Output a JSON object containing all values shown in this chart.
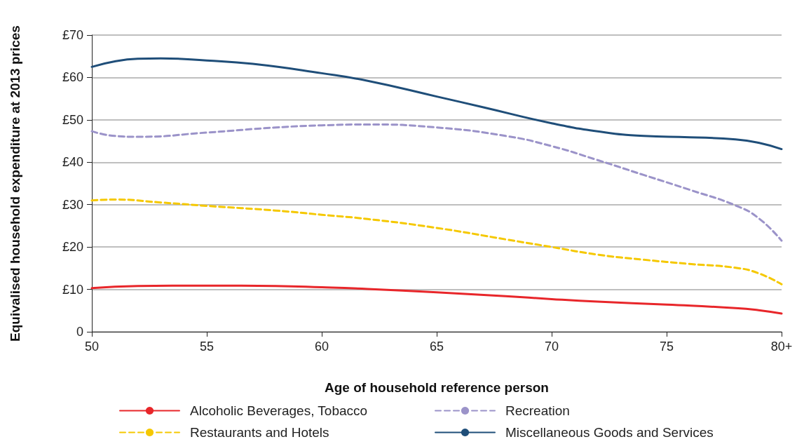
{
  "chart_data": {
    "type": "line",
    "xlabel": "Age of household reference person",
    "ylabel": "Equivalised household expenditure at 2013 prices",
    "xlim": [
      50,
      80
    ],
    "xticks": [
      50,
      55,
      60,
      65,
      70,
      75,
      {
        "value": 80,
        "label": "80+"
      }
    ],
    "ylim": [
      0,
      70
    ],
    "yticks": [
      0,
      {
        "value": 10,
        "label": "£10"
      },
      {
        "value": 20,
        "label": "£20"
      },
      {
        "value": 30,
        "label": "£30"
      },
      {
        "value": 40,
        "label": "£40"
      },
      {
        "value": 50,
        "label": "£50"
      },
      {
        "value": 60,
        "label": "£60"
      },
      {
        "value": 70,
        "label": "£70"
      }
    ],
    "grid": "y",
    "legend": "bottom",
    "marker": "none",
    "series": [
      {
        "name": "Alcoholic Beverages, Tobacco",
        "color": "#e8262a",
        "line_style": "solid",
        "x": [
          50,
          52,
          55,
          58,
          60,
          62,
          65,
          68,
          70,
          72,
          75,
          78,
          79,
          80
        ],
        "values": [
          10.3,
          10.8,
          10.9,
          10.8,
          10.5,
          10.1,
          9.3,
          8.4,
          7.7,
          7.1,
          6.4,
          5.6,
          5.1,
          4.3
        ]
      },
      {
        "name": "Recreation",
        "color": "#9b93c9",
        "line_style": "dashed",
        "x": [
          50,
          51,
          52,
          55,
          58,
          60,
          62,
          65,
          68,
          70,
          72,
          74,
          76,
          78,
          79,
          80
        ],
        "values": [
          47.3,
          46.2,
          46.0,
          47.0,
          48.2,
          48.7,
          48.9,
          48.2,
          46.2,
          43.8,
          40.5,
          37,
          33.5,
          29.8,
          26.8,
          21.5
        ]
      },
      {
        "name": "Restaurants and Hotels",
        "color": "#f5c800",
        "line_style": "dashed",
        "x": [
          50,
          51,
          53,
          55,
          58,
          60,
          62,
          65,
          68,
          70,
          72,
          74,
          76,
          78,
          79,
          80
        ],
        "values": [
          31.0,
          31.2,
          30.5,
          29.7,
          28.6,
          27.6,
          26.6,
          24.5,
          21.8,
          20.0,
          18.2,
          17.0,
          16.0,
          15.1,
          13.8,
          11.2
        ]
      },
      {
        "name": "Miscellaneous Goods and Services",
        "color": "#1f4e79",
        "line_style": "solid",
        "x": [
          50,
          51,
          52,
          53,
          55,
          57,
          60,
          62,
          65,
          67,
          70,
          72,
          74,
          76,
          78,
          79,
          80
        ],
        "values": [
          62.5,
          63.8,
          64.4,
          64.5,
          64.0,
          63.2,
          61.0,
          59.2,
          55.5,
          53,
          49.2,
          47.3,
          46.2,
          45.9,
          45.4,
          44.6,
          43.1
        ]
      }
    ]
  }
}
